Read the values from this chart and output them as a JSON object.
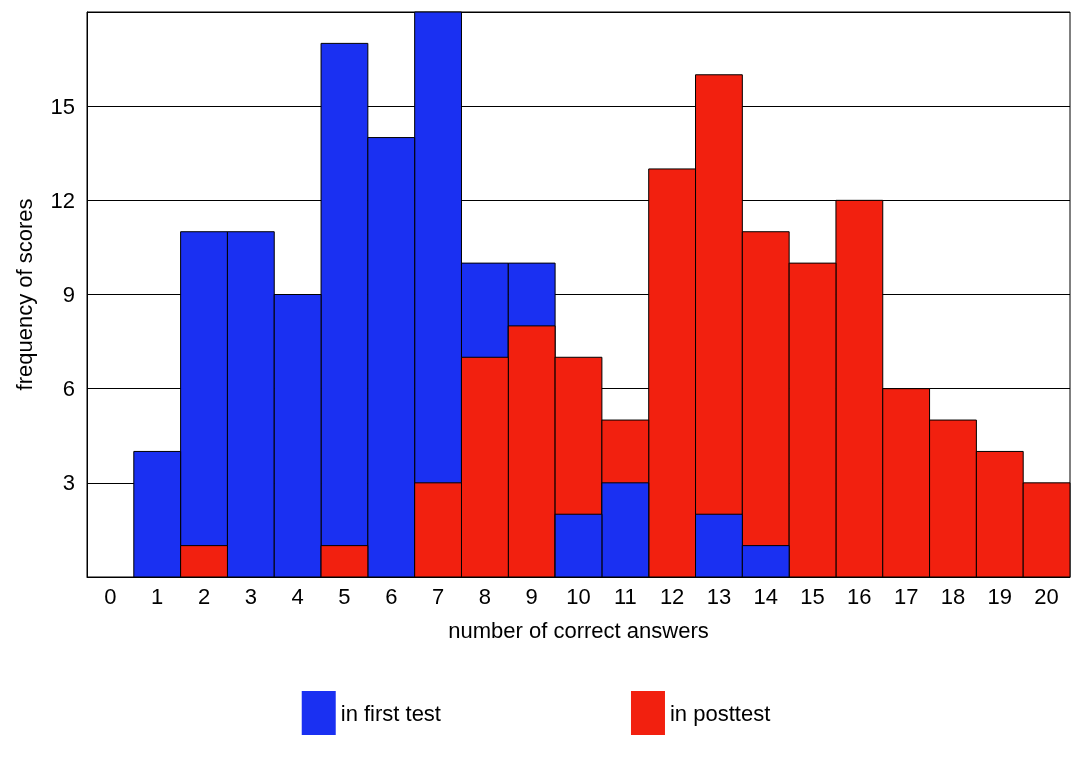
{
  "chart_data": {
    "type": "histogram",
    "xlabel": "number of correct answers",
    "ylabel": "frequency of scores",
    "bins": [
      -0.5,
      0.5,
      1.5,
      2.5,
      3.5,
      4.5,
      5.5,
      6.5,
      7.5,
      8.5,
      9.5,
      10.5,
      11.5,
      12.5,
      13.5,
      14.5,
      15.5,
      16.5,
      17.5,
      18.5,
      19.5,
      20.5
    ],
    "series": [
      {
        "name": "in first test",
        "color": "#1a30f2",
        "values": [
          0,
          4,
          11,
          11,
          9,
          17,
          14,
          18,
          10,
          10,
          2,
          3,
          0,
          2,
          1,
          0,
          0,
          0,
          0,
          0,
          0
        ]
      },
      {
        "name": "in posttest",
        "color": "#f2200f",
        "values": [
          0,
          0,
          1,
          0,
          0,
          1,
          0,
          3,
          7,
          8,
          7,
          5,
          13,
          16,
          11,
          10,
          12,
          6,
          5,
          4,
          3
        ]
      }
    ],
    "xlim": [
      -0.5,
      20.5
    ],
    "xticks": [
      0,
      1,
      2,
      3,
      4,
      5,
      6,
      7,
      8,
      9,
      10,
      11,
      12,
      13,
      14,
      15,
      16,
      17,
      18,
      19,
      20
    ],
    "ylim": [
      0,
      18
    ],
    "yticks": [
      3,
      6,
      9,
      12,
      15
    ],
    "grid": "y",
    "legend": "bottom"
  }
}
